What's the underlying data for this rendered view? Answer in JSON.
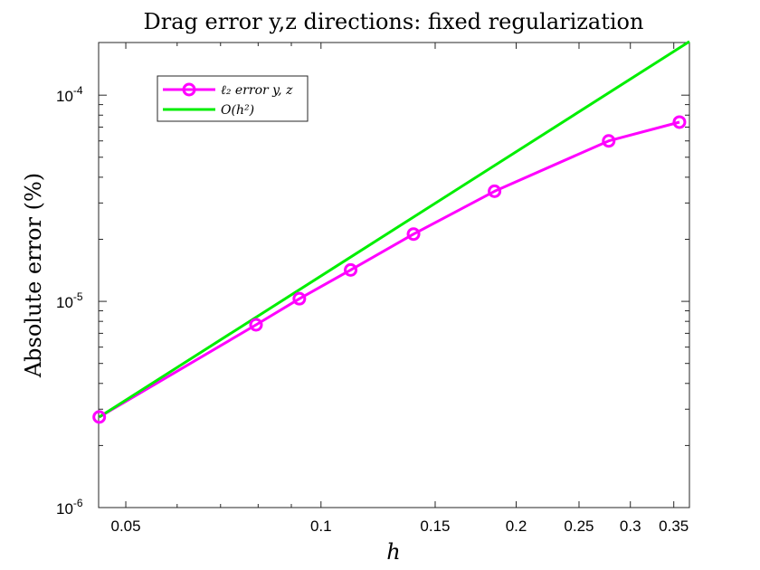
{
  "chart_data": {
    "type": "line",
    "title": "Drag error y,z directions: fixed regularization",
    "xlabel": "h",
    "ylabel": "Absolute error (%)",
    "xscale": "log",
    "yscale": "log",
    "xlim": [
      0.0454,
      0.37
    ],
    "ylim": [
      1e-06,
      0.00018
    ],
    "xticks": [
      0.05,
      0.1,
      0.15,
      0.2,
      0.25,
      0.3,
      0.35
    ],
    "xtick_labels": [
      "0.05",
      "0.1",
      "0.15",
      "0.2",
      "0.25",
      "0.3",
      "0.35"
    ],
    "yticks": [
      1e-06,
      1e-05,
      0.0001
    ],
    "ytick_base": "10",
    "ytick_exponents": [
      "-6",
      "-5",
      "-4"
    ],
    "grid": false,
    "legend_position": "top-left",
    "series": [
      {
        "name": "ℓ₂ error y, z",
        "color": "#ff00ff",
        "marker": "circle",
        "x": [
          0.0455,
          0.0794,
          0.0926,
          0.1111,
          0.1389,
          0.1852,
          0.2778,
          0.3571
        ],
        "y": [
          2.75e-06,
          7.7e-06,
          1.03e-05,
          1.42e-05,
          2.12e-05,
          3.42e-05,
          6e-05,
          7.4e-05
        ]
      },
      {
        "name": "O(h²)",
        "color": "#00ee00",
        "marker": "none",
        "x": [
          0.0455,
          0.37
        ],
        "y": [
          2.75e-06,
          0.000182
        ]
      }
    ]
  }
}
